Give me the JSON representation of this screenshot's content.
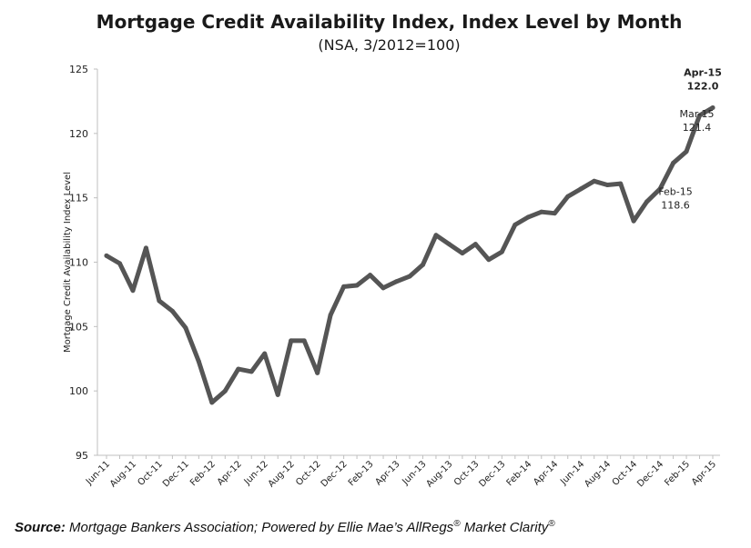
{
  "title": "Mortgage Credit Availability Index, Index Level by Month",
  "subtitle": "(NSA, 3/2012=100)",
  "source": {
    "label": "Source:",
    "text_main": "Mortgage Bankers Association; Powered by Ellie Mae’s AllRegs",
    "reg1": "®",
    "text_tail": " Market Clarity",
    "reg2": "®"
  },
  "chart_data": {
    "type": "line",
    "title": "Mortgage Credit Availability Index, Index Level by Month",
    "subtitle": "(NSA, 3/2012=100)",
    "ylabel": "Mortgage Credit Availability Index Level",
    "xlabel": "",
    "ylim": [
      95,
      125
    ],
    "yticks": [
      95,
      100,
      105,
      110,
      115,
      120,
      125
    ],
    "grid": false,
    "line_color": "#555555",
    "x": [
      "Jun-11",
      "Jul-11",
      "Aug-11",
      "Sep-11",
      "Oct-11",
      "Nov-11",
      "Dec-11",
      "Jan-12",
      "Feb-12",
      "Mar-12",
      "Apr-12",
      "May-12",
      "Jun-12",
      "Jul-12",
      "Aug-12",
      "Sep-12",
      "Oct-12",
      "Nov-12",
      "Dec-12",
      "Jan-13",
      "Feb-13",
      "Mar-13",
      "Apr-13",
      "May-13",
      "Jun-13",
      "Jul-13",
      "Aug-13",
      "Sep-13",
      "Oct-13",
      "Nov-13",
      "Dec-13",
      "Jan-14",
      "Feb-14",
      "Mar-14",
      "Apr-14",
      "May-14",
      "Jun-14",
      "Jul-14",
      "Aug-14",
      "Sep-14",
      "Oct-14",
      "Nov-14",
      "Dec-14",
      "Jan-15",
      "Feb-15",
      "Mar-15",
      "Apr-15"
    ],
    "xtick_labels": [
      "Jun-11",
      "Aug-11",
      "Oct-11",
      "Dec-11",
      "Feb-12",
      "Apr-12",
      "Jun-12",
      "Aug-12",
      "Oct-12",
      "Dec-12",
      "Feb-13",
      "Apr-13",
      "Jun-13",
      "Aug-13",
      "Oct-13",
      "Dec-13",
      "Feb-14",
      "Apr-14",
      "Jun-14",
      "Aug-14",
      "Oct-14",
      "Dec-14",
      "Feb-15",
      "Apr-15"
    ],
    "series": [
      {
        "values": [
          110.5,
          109.9,
          107.8,
          111.1,
          107.0,
          106.2,
          104.9,
          102.3,
          99.1,
          100.0,
          101.7,
          101.5,
          102.9,
          99.7,
          103.9,
          103.9,
          101.4,
          105.9,
          108.1,
          108.2,
          109.0,
          108.0,
          108.5,
          108.9,
          109.8,
          112.1,
          111.4,
          110.7,
          111.4,
          110.2,
          110.8,
          112.9,
          113.5,
          113.9,
          113.8,
          115.1,
          115.7,
          116.3,
          116.0,
          116.1,
          113.2,
          114.7,
          115.7,
          117.7,
          118.6,
          121.4,
          122.0
        ]
      }
    ],
    "annotations": [
      {
        "month": "Apr-15",
        "line1": "Apr-15",
        "line2": "122.0",
        "bold": true
      },
      {
        "month": "Mar-15",
        "line1": "Mar-15",
        "line2": "121.4",
        "bold": false
      },
      {
        "month": "Feb-15",
        "line1": "Feb-15",
        "line2": "118.6",
        "bold": false
      }
    ]
  }
}
